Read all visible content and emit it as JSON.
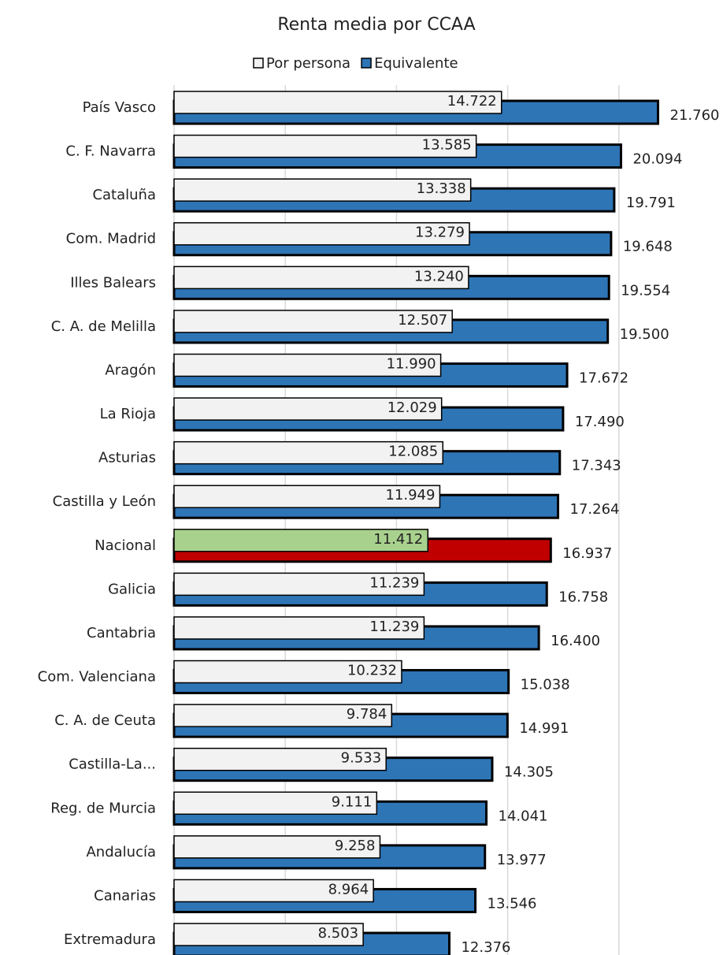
{
  "chart_data": {
    "type": "bar",
    "orientation": "horizontal",
    "title": "Renta media por CCAA",
    "categories": [
      "País Vasco",
      "C. F. Navarra",
      "Cataluña",
      "Com. Madrid",
      "Illes Balears",
      "C. A. de Melilla",
      "Aragón",
      "La Rioja",
      "Asturias",
      "Castilla y León",
      "Nacional",
      "Galicia",
      "Cantabria",
      "Com. Valenciana",
      "C. A. de Ceuta",
      "Castilla-La...",
      "Reg. de Murcia",
      "Andalucía",
      "Canarias",
      "Extremadura"
    ],
    "series": [
      {
        "name": "Por persona",
        "color": "#f2f2f2",
        "values": [
          14722,
          13585,
          13338,
          13279,
          13240,
          12507,
          11990,
          12029,
          12085,
          11949,
          11412,
          11239,
          11239,
          10232,
          9784,
          9533,
          9111,
          9258,
          8964,
          8503
        ],
        "value_labels": [
          "14.722",
          "13.585",
          "13.338",
          "13.279",
          "13.240",
          "12.507",
          "11.990",
          "12.029",
          "12.085",
          "11.949",
          "11.412",
          "11.239",
          "11.239",
          "10.232",
          "9.784",
          "9.533",
          "9.111",
          "9.258",
          "8.964",
          "8.503"
        ]
      },
      {
        "name": "Equivalente",
        "color": "#2e75b6",
        "values": [
          21760,
          20094,
          19791,
          19648,
          19554,
          19500,
          17672,
          17490,
          17343,
          17264,
          16937,
          16758,
          16400,
          15038,
          14991,
          14305,
          14041,
          13977,
          13546,
          12376
        ],
        "value_labels": [
          "21.760",
          "20.094",
          "19.791",
          "19.648",
          "19.554",
          "19.500",
          "17.672",
          "17.490",
          "17.343",
          "17.264",
          "16.937",
          "16.758",
          "16.400",
          "15.038",
          "14.991",
          "14.305",
          "14.041",
          "13.977",
          "13.546",
          "12.376"
        ]
      }
    ],
    "highlight": {
      "category": "Nacional",
      "colors": [
        "#a9d18e",
        "#c00000"
      ]
    },
    "xlim": [
      0,
      25000
    ],
    "xticks": [
      0,
      5000,
      10000,
      15000,
      20000
    ],
    "grid": true,
    "legend": "top"
  }
}
